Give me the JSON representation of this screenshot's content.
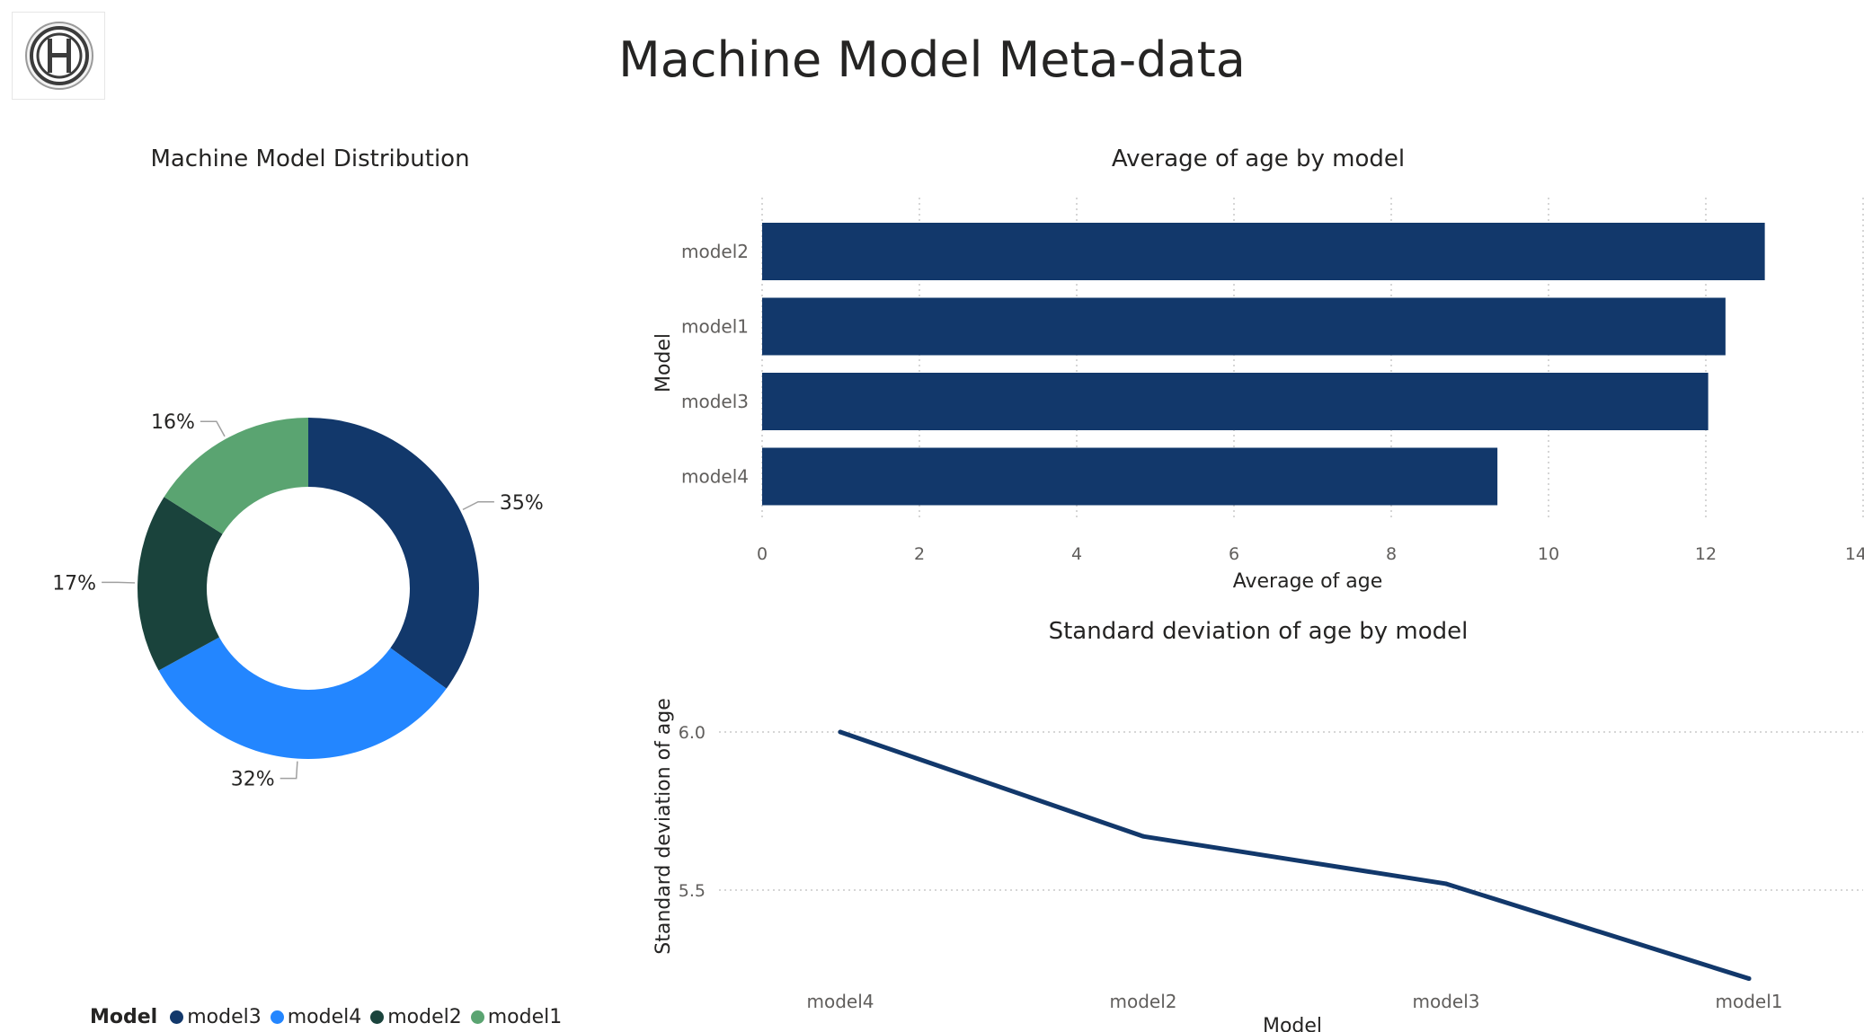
{
  "page": {
    "title": "Machine Model Meta-data"
  },
  "colors": {
    "model3": "#12386b",
    "model4": "#2386ff",
    "model2": "#1a433c",
    "model1": "#5aa471",
    "bar": "#12386b",
    "line": "#12386b"
  },
  "chart_data": [
    {
      "type": "pie",
      "variant": "donut",
      "title": "Machine Model Distribution",
      "categories": [
        "model3",
        "model4",
        "model2",
        "model1"
      ],
      "values": [
        35,
        32,
        17,
        16
      ],
      "labels": [
        "35%",
        "32%",
        "17%",
        "16%"
      ],
      "legend": {
        "title": "Model",
        "placement": "bottom-left",
        "items": [
          "model3",
          "model4",
          "model2",
          "model1"
        ]
      }
    },
    {
      "type": "bar",
      "orientation": "horizontal",
      "title": "Average of age by model",
      "categories": [
        "model2",
        "model1",
        "model3",
        "model4"
      ],
      "values": [
        12.75,
        12.25,
        12.03,
        9.35
      ],
      "xlabel": "Average of age",
      "ylabel": "Model",
      "xlim": [
        0,
        14
      ],
      "xticks": [
        "0",
        "2",
        "4",
        "6",
        "8",
        "10",
        "12",
        "14"
      ],
      "grid": "vertical dotted"
    },
    {
      "type": "line",
      "title": "Standard deviation of age by model",
      "categories": [
        "model4",
        "model2",
        "model3",
        "model1"
      ],
      "values": [
        6.0,
        5.67,
        5.52,
        5.22
      ],
      "xlabel": "Model",
      "ylabel": "Standard deviation of age",
      "ylim": [
        5.25,
        6.08
      ],
      "yticks": [
        "6.0",
        "5.5"
      ],
      "grid": "horizontal dotted"
    }
  ]
}
